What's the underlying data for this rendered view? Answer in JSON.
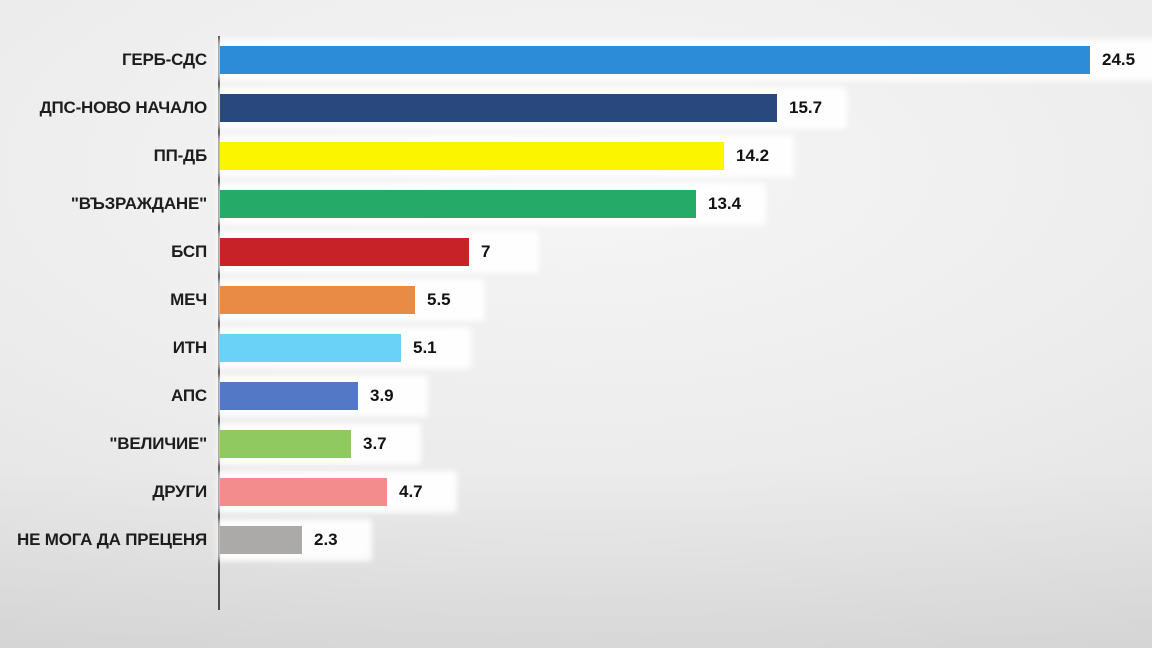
{
  "chart_data": {
    "type": "bar",
    "orientation": "horizontal",
    "title": "",
    "xlabel": "",
    "ylabel": "",
    "xlim": [
      0,
      26
    ],
    "grid": false,
    "legend": false,
    "categories": [
      "ГЕРБ-СДС",
      "ДПС-НОВО НАЧАЛО",
      "ПП-ДБ",
      "\"ВЪЗРАЖДАНЕ\"",
      "БСП",
      "МЕЧ",
      "ИТН",
      "АПС",
      "\"ВЕЛИЧИЕ\"",
      "ДРУГИ",
      "НЕ МОГА ДА ПРЕЦЕНЯ"
    ],
    "values": [
      24.5,
      15.7,
      14.2,
      13.4,
      7,
      5.5,
      5.1,
      3.9,
      3.7,
      4.7,
      2.3
    ],
    "value_labels": [
      "24.5",
      "15.7",
      "14.2",
      "13.4",
      "7",
      "5.5",
      "5.1",
      "3.9",
      "3.7",
      "4.7",
      "2.3"
    ],
    "bar_colors": [
      "#2d8cd8",
      "#29497e",
      "#fcf500",
      "#25aa68",
      "#c62227",
      "#e98b44",
      "#69d2f6",
      "#5378c6",
      "#91c961",
      "#f28c8d",
      "#acaaa9"
    ]
  },
  "colors": {
    "axis": "#4b4b4b",
    "category_text": "#1d1d1d",
    "value_text": "#121212",
    "row_halo": "#ffffff",
    "background_center": "#f6f6f6",
    "background_edge": "#dcdcdc"
  }
}
